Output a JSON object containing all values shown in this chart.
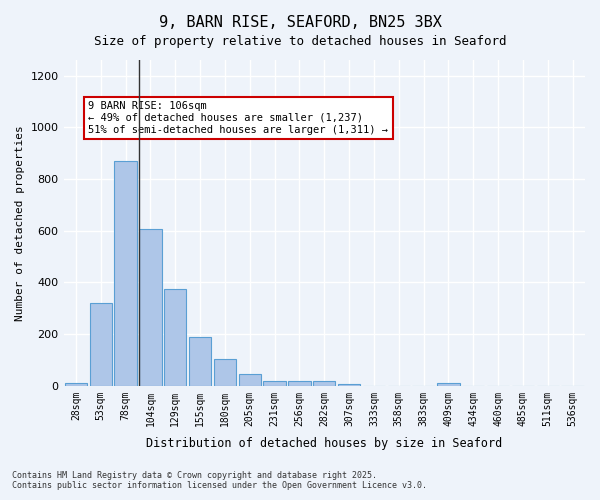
{
  "title_line1": "9, BARN RISE, SEAFORD, BN25 3BX",
  "title_line2": "Size of property relative to detached houses in Seaford",
  "xlabel": "Distribution of detached houses by size in Seaford",
  "ylabel": "Number of detached properties",
  "categories": [
    "28sqm",
    "53sqm",
    "78sqm",
    "104sqm",
    "129sqm",
    "155sqm",
    "180sqm",
    "205sqm",
    "231sqm",
    "256sqm",
    "282sqm",
    "307sqm",
    "333sqm",
    "358sqm",
    "383sqm",
    "409sqm",
    "434sqm",
    "460sqm",
    "485sqm",
    "511sqm",
    "536sqm"
  ],
  "values": [
    12,
    320,
    868,
    605,
    375,
    190,
    105,
    47,
    20,
    17,
    20,
    5,
    0,
    0,
    0,
    10,
    0,
    0,
    0,
    0,
    0
  ],
  "bar_color": "#aec6e8",
  "bar_edge_color": "#5a9fd4",
  "highlight_bar_index": 3,
  "highlight_bar_color": "#aec6e8",
  "vline_x": 3,
  "vline_color": "#333333",
  "annotation_text": "9 BARN RISE: 106sqm\n← 49% of detached houses are smaller (1,237)\n51% of semi-detached houses are larger (1,311) →",
  "annotation_box_color": "#cc0000",
  "ylim": [
    0,
    1260
  ],
  "yticks": [
    0,
    200,
    400,
    600,
    800,
    1000,
    1200
  ],
  "footer_line1": "Contains HM Land Registry data © Crown copyright and database right 2025.",
  "footer_line2": "Contains public sector information licensed under the Open Government Licence v3.0.",
  "bg_color": "#eef3fa",
  "plot_bg_color": "#eef3fa",
  "grid_color": "#ffffff"
}
